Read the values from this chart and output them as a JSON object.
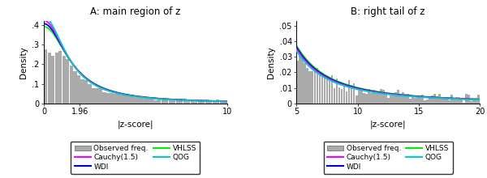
{
  "panel_A": {
    "title": "A: main region of z",
    "xlabel": "|z-score|",
    "ylabel": "Density",
    "xlim": [
      0,
      10
    ],
    "ylim": [
      0,
      0.42
    ],
    "yticks": [
      0.0,
      0.1,
      0.2,
      0.3,
      0.4
    ],
    "ytick_labels": [
      "0",
      ".1",
      ".2",
      ".3",
      ".4"
    ],
    "xtick_vals": [
      0,
      1.96,
      10
    ],
    "xtick_labels": [
      "0",
      "1.96",
      "10"
    ]
  },
  "panel_B": {
    "title": "B: right tail of z",
    "xlabel": "|z-score|",
    "ylabel": "Density",
    "xlim": [
      5,
      20
    ],
    "ylim": [
      0,
      0.053
    ],
    "yticks": [
      0.0,
      0.01,
      0.02,
      0.03,
      0.04,
      0.05
    ],
    "ytick_labels": [
      "0",
      ".01",
      ".02",
      ".03",
      ".04",
      ".05"
    ],
    "xtick_vals": [
      5,
      10,
      15,
      20
    ],
    "xtick_labels": [
      "5",
      "10",
      "15",
      "20"
    ]
  },
  "colors": {
    "bar": "#aaaaaa",
    "bar_edge": "#888888",
    "WDI": "#0000dd",
    "QOG": "#00cccc",
    "Cauchy": "#ff00ff",
    "VHLSS": "#00ee00"
  },
  "curve_scales": {
    "Cauchy": 1.5,
    "WDI": 1.56,
    "QOG": 1.44,
    "VHLSS": 1.62
  },
  "seed": 123,
  "figsize": [
    6.0,
    2.2
  ],
  "dpi": 100
}
